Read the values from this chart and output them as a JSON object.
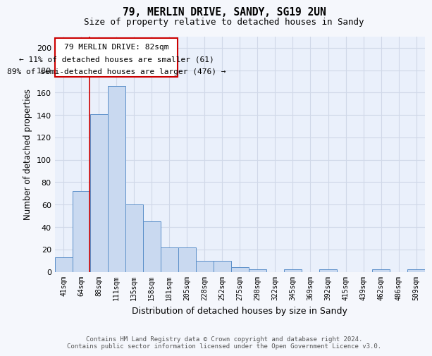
{
  "title1": "79, MERLIN DRIVE, SANDY, SG19 2UN",
  "title2": "Size of property relative to detached houses in Sandy",
  "xlabel": "Distribution of detached houses by size in Sandy",
  "ylabel": "Number of detached properties",
  "bar_labels": [
    "41sqm",
    "64sqm",
    "88sqm",
    "111sqm",
    "135sqm",
    "158sqm",
    "181sqm",
    "205sqm",
    "228sqm",
    "252sqm",
    "275sqm",
    "298sqm",
    "322sqm",
    "345sqm",
    "369sqm",
    "392sqm",
    "415sqm",
    "439sqm",
    "462sqm",
    "486sqm",
    "509sqm"
  ],
  "bar_heights": [
    13,
    72,
    141,
    166,
    60,
    45,
    22,
    22,
    10,
    10,
    4,
    2,
    0,
    2,
    0,
    2,
    0,
    0,
    2,
    0,
    2
  ],
  "bar_color": "#c9d9f0",
  "bar_edge_color": "#5b8fc9",
  "grid_color": "#d0d8e8",
  "background_color": "#eaf0fb",
  "fig_background": "#f5f7fc",
  "red_line_x": 1.48,
  "red_line_color": "#cc0000",
  "annotation_title": "79 MERLIN DRIVE: 82sqm",
  "annotation_line1": "← 11% of detached houses are smaller (61)",
  "annotation_line2": "89% of semi-detached houses are larger (476) →",
  "annotation_box_color": "#ffffff",
  "annotation_box_edge": "#cc0000",
  "ylim": [
    0,
    210
  ],
  "yticks": [
    0,
    20,
    40,
    60,
    80,
    100,
    120,
    140,
    160,
    180,
    200
  ],
  "footnote1": "Contains HM Land Registry data © Crown copyright and database right 2024.",
  "footnote2": "Contains public sector information licensed under the Open Government Licence v3.0."
}
